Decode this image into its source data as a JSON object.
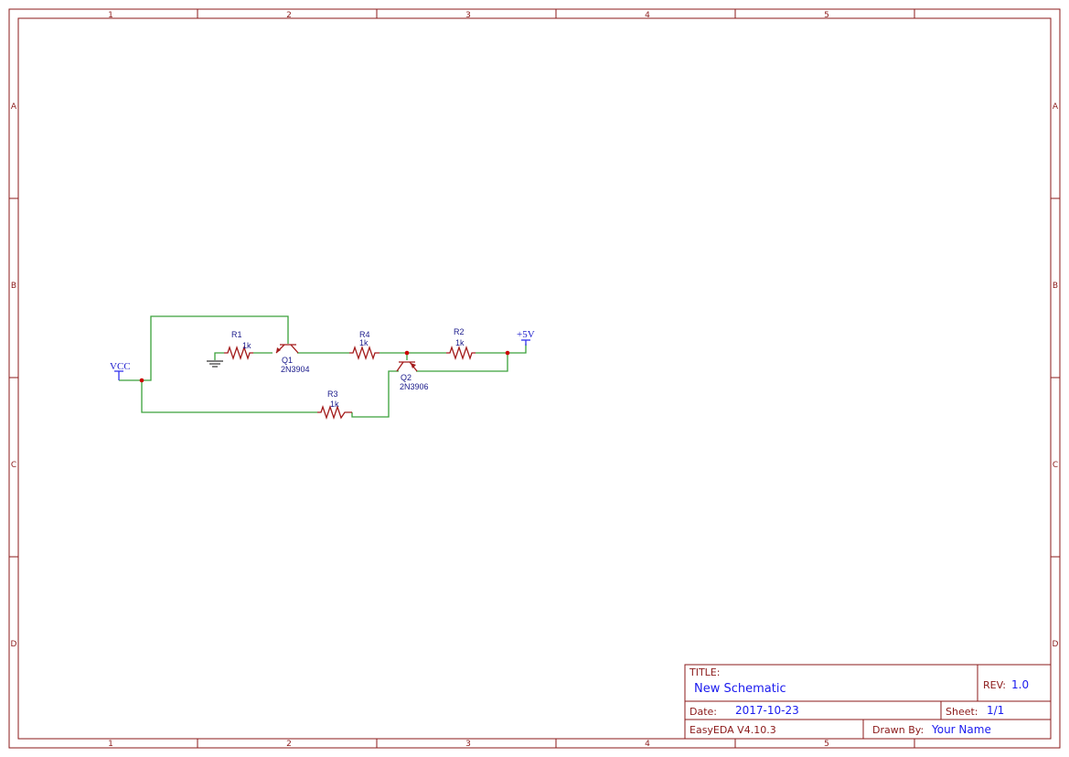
{
  "frame": {
    "columns": [
      "1",
      "2",
      "3",
      "4",
      "5"
    ],
    "rows": [
      "A",
      "B",
      "C",
      "D"
    ]
  },
  "title_block": {
    "title_label": "TITLE:",
    "title": "New Schematic",
    "rev_label": "REV:",
    "rev": "1.0",
    "date_label": "Date:",
    "date": "2017-10-23",
    "sheet_label": "Sheet:",
    "sheet": "1/1",
    "software": "EasyEDA V4.10.3",
    "drawn_by_label": "Drawn By:",
    "drawn_by": "Your Name"
  },
  "components": {
    "r1": {
      "ref": "R1",
      "value": "1k"
    },
    "r2": {
      "ref": "R2",
      "value": "1k"
    },
    "r3": {
      "ref": "R3",
      "value": "1k"
    },
    "r4": {
      "ref": "R4",
      "value": "1k"
    },
    "q1": {
      "ref": "Q1",
      "value": "2N3904"
    },
    "q2": {
      "ref": "Q2",
      "value": "2N3906"
    },
    "vcc": "VCC",
    "p5v": "+5V"
  },
  "colors": {
    "frame": "#8b1a1a",
    "wire": "#3aa13a",
    "part": "#a31a1a",
    "label": "#1a1a8b",
    "value": "#1a1aee"
  }
}
